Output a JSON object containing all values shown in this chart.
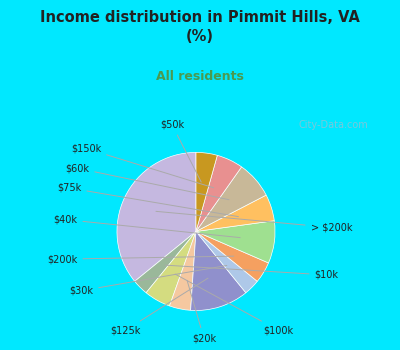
{
  "title": "Income distribution in Pimmit Hills, VA\n(%)",
  "subtitle": "All residents",
  "labels": [
    "> $200k",
    "$10k",
    "$100k",
    "$20k",
    "$125k",
    "$30k",
    "$200k",
    "$40k",
    "$75k",
    "$60k",
    "$150k",
    "$50k"
  ],
  "sizes": [
    33,
    3,
    5,
    4,
    11,
    3,
    4,
    8,
    5,
    7,
    5,
    4
  ],
  "colors": [
    "#c5b8e0",
    "#9ab89a",
    "#d4dc80",
    "#f5c8a0",
    "#9090cc",
    "#aec8e8",
    "#f5a060",
    "#9fe090",
    "#ffc060",
    "#c8b898",
    "#e89090",
    "#c89820"
  ],
  "bg_color": "#d8f0e0",
  "title_color": "#222222",
  "subtitle_color": "#4a9a50",
  "outer_bg": "#00e8ff",
  "startangle": 90,
  "label_fontsize": 7.0,
  "watermark": "City-Data.com"
}
